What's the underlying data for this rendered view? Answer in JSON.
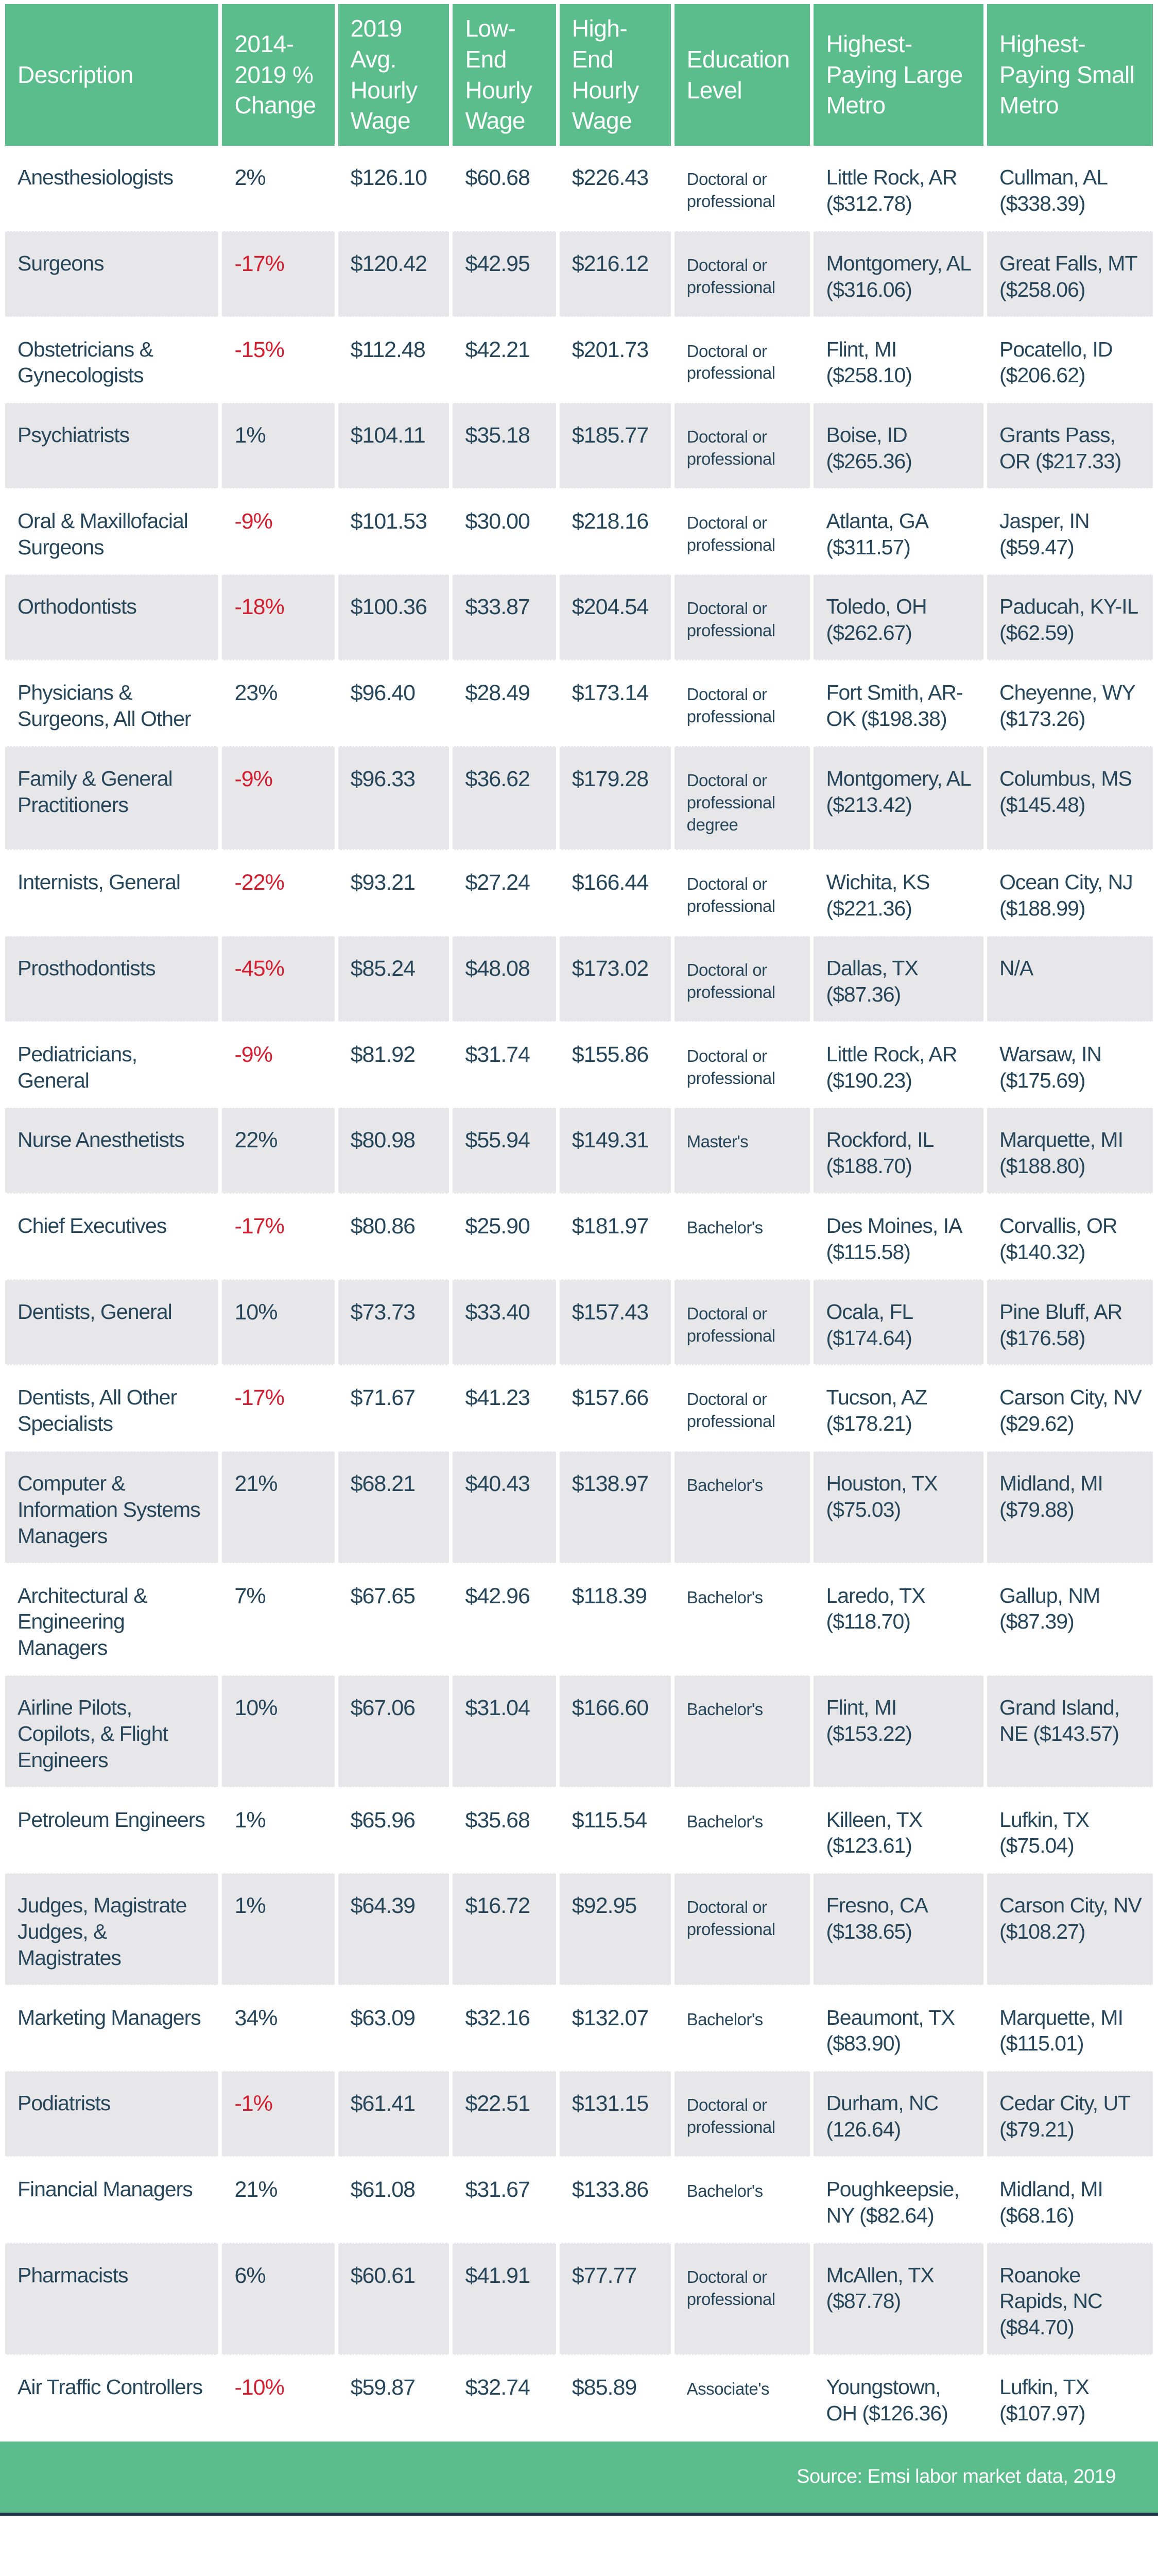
{
  "colors": {
    "header_green": "#5bbd8b",
    "row_gray": "#e7e7e9",
    "text_navy": "#27465a",
    "negative_red": "#d12031",
    "bottom_strip": "#20374a"
  },
  "footer": {
    "source": "Source: Emsi labor market data, 2019"
  },
  "table": {
    "columns": [
      {
        "id": "description",
        "label": "Description"
      },
      {
        "id": "change",
        "label": "2014-2019 % Change"
      },
      {
        "id": "avg_wage",
        "label": "2019 Avg. Hourly Wage"
      },
      {
        "id": "low_wage",
        "label": "Low-End Hourly Wage"
      },
      {
        "id": "high_wage",
        "label": "High-End Hourly Wage"
      },
      {
        "id": "education",
        "label": "Education Level"
      },
      {
        "id": "large_metro",
        "label": "Highest-Paying Large Metro"
      },
      {
        "id": "small_metro",
        "label": "Highest-Paying Small Metro"
      }
    ],
    "rows": [
      {
        "description": "Anesthesiologists",
        "change": "2%",
        "avg_wage": "$126.10",
        "low_wage": "$60.68",
        "high_wage": "$226.43",
        "education": "Doctoral or professional",
        "large_metro": "Little Rock, AR ($312.78)",
        "small_metro": "Cullman, AL ($338.39)"
      },
      {
        "description": "Surgeons",
        "change": "-17%",
        "avg_wage": "$120.42",
        "low_wage": "$42.95",
        "high_wage": "$216.12",
        "education": "Doctoral or professional",
        "large_metro": "Montgomery, AL ($316.06)",
        "small_metro": "Great Falls, MT ($258.06)"
      },
      {
        "description": "Obstetricians & Gynecologists",
        "change": "-15%",
        "avg_wage": "$112.48",
        "low_wage": "$42.21",
        "high_wage": "$201.73",
        "education": "Doctoral or professional",
        "large_metro": "Flint, MI ($258.10)",
        "small_metro": "Pocatello, ID ($206.62)"
      },
      {
        "description": "Psychiatrists",
        "change": "1%",
        "avg_wage": "$104.11",
        "low_wage": "$35.18",
        "high_wage": "$185.77",
        "education": "Doctoral or professional",
        "large_metro": "Boise, ID ($265.36)",
        "small_metro": "Grants Pass, OR ($217.33)"
      },
      {
        "description": "Oral & Maxillofacial Surgeons",
        "change": "-9%",
        "avg_wage": "$101.53",
        "low_wage": "$30.00",
        "high_wage": "$218.16",
        "education": "Doctoral or professional",
        "large_metro": "Atlanta, GA ($311.57)",
        "small_metro": "Jasper, IN ($59.47)"
      },
      {
        "description": "Orthodontists",
        "change": "-18%",
        "avg_wage": "$100.36",
        "low_wage": "$33.87",
        "high_wage": "$204.54",
        "education": "Doctoral or professional",
        "large_metro": "Toledo, OH ($262.67)",
        "small_metro": "Paducah, KY-IL ($62.59)"
      },
      {
        "description": "Physicians & Surgeons, All Other",
        "change": "23%",
        "avg_wage": "$96.40",
        "low_wage": "$28.49",
        "high_wage": "$173.14",
        "education": "Doctoral or professional",
        "large_metro": "Fort Smith, AR-OK ($198.38)",
        "small_metro": "Cheyenne, WY ($173.26)"
      },
      {
        "description": "Family & General Practitioners",
        "change": "-9%",
        "avg_wage": "$96.33",
        "low_wage": "$36.62",
        "high_wage": "$179.28",
        "education": "Doctoral or professional degree",
        "large_metro": "Montgomery, AL ($213.42)",
        "small_metro": "Columbus, MS ($145.48)"
      },
      {
        "description": "Internists, General",
        "change": "-22%",
        "avg_wage": "$93.21",
        "low_wage": "$27.24",
        "high_wage": "$166.44",
        "education": "Doctoral or professional",
        "large_metro": "Wichita, KS ($221.36)",
        "small_metro": "Ocean City, NJ ($188.99)"
      },
      {
        "description": "Prosthodontists",
        "change": "-45%",
        "avg_wage": "$85.24",
        "low_wage": "$48.08",
        "high_wage": "$173.02",
        "education": "Doctoral or professional",
        "large_metro": "Dallas, TX ($87.36)",
        "small_metro": "N/A"
      },
      {
        "description": "Pediatricians, General",
        "change": "-9%",
        "avg_wage": "$81.92",
        "low_wage": "$31.74",
        "high_wage": "$155.86",
        "education": "Doctoral or professional",
        "large_metro": "Little Rock, AR ($190.23)",
        "small_metro": "Warsaw, IN ($175.69)"
      },
      {
        "description": "Nurse Anesthetists",
        "change": "22%",
        "avg_wage": "$80.98",
        "low_wage": "$55.94",
        "high_wage": "$149.31",
        "education": "Master's",
        "large_metro": "Rockford, IL ($188.70)",
        "small_metro": "Marquette, MI ($188.80)"
      },
      {
        "description": "Chief Executives",
        "change": "-17%",
        "avg_wage": "$80.86",
        "low_wage": "$25.90",
        "high_wage": "$181.97",
        "education": "Bachelor's",
        "large_metro": "Des Moines, IA ($115.58)",
        "small_metro": "Corvallis, OR ($140.32)"
      },
      {
        "description": "Dentists, General",
        "change": "10%",
        "avg_wage": "$73.73",
        "low_wage": "$33.40",
        "high_wage": "$157.43",
        "education": "Doctoral or professional",
        "large_metro": "Ocala, FL ($174.64)",
        "small_metro": "Pine Bluff, AR ($176.58)"
      },
      {
        "description": "Dentists, All Other Specialists",
        "change": "-17%",
        "avg_wage": "$71.67",
        "low_wage": "$41.23",
        "high_wage": "$157.66",
        "education": "Doctoral or professional",
        "large_metro": "Tucson, AZ ($178.21)",
        "small_metro": "Carson City, NV ($29.62)"
      },
      {
        "description": "Computer & Information Systems Managers",
        "change": "21%",
        "avg_wage": "$68.21",
        "low_wage": "$40.43",
        "high_wage": "$138.97",
        "education": "Bachelor's",
        "large_metro": "Houston, TX ($75.03)",
        "small_metro": "Midland, MI ($79.88)"
      },
      {
        "description": "Architectural & Engineering Managers",
        "change": "7%",
        "avg_wage": "$67.65",
        "low_wage": "$42.96",
        "high_wage": "$118.39",
        "education": "Bachelor's",
        "large_metro": "Laredo, TX ($118.70)",
        "small_metro": "Gallup, NM ($87.39)"
      },
      {
        "description": "Airline Pilots, Copilots, & Flight Engineers",
        "change": "10%",
        "avg_wage": "$67.06",
        "low_wage": "$31.04",
        "high_wage": "$166.60",
        "education": "Bachelor's",
        "large_metro": "Flint, MI ($153.22)",
        "small_metro": "Grand Island, NE ($143.57)"
      },
      {
        "description": "Petroleum Engineers",
        "change": "1%",
        "avg_wage": "$65.96",
        "low_wage": "$35.68",
        "high_wage": "$115.54",
        "education": "Bachelor's",
        "large_metro": "Killeen, TX ($123.61)",
        "small_metro": "Lufkin, TX ($75.04)"
      },
      {
        "description": "Judges, Magistrate Judges, & Magistrates",
        "change": "1%",
        "avg_wage": "$64.39",
        "low_wage": "$16.72",
        "high_wage": "$92.95",
        "education": "Doctoral or professional",
        "large_metro": "Fresno, CA ($138.65)",
        "small_metro": "Carson City, NV ($108.27)"
      },
      {
        "description": "Marketing Managers",
        "change": "34%",
        "avg_wage": "$63.09",
        "low_wage": "$32.16",
        "high_wage": "$132.07",
        "education": "Bachelor's",
        "large_metro": "Beaumont, TX ($83.90)",
        "small_metro": "Marquette, MI ($115.01)"
      },
      {
        "description": "Podiatrists",
        "change": "-1%",
        "avg_wage": "$61.41",
        "low_wage": "$22.51",
        "high_wage": "$131.15",
        "education": "Doctoral or professional",
        "large_metro": "Durham, NC (126.64)",
        "small_metro": "Cedar City, UT ($79.21)"
      },
      {
        "description": "Financial Managers",
        "change": "21%",
        "avg_wage": "$61.08",
        "low_wage": "$31.67",
        "high_wage": "$133.86",
        "education": "Bachelor's",
        "large_metro": "Poughkeepsie, NY ($82.64)",
        "small_metro": "Midland, MI ($68.16)"
      },
      {
        "description": "Pharmacists",
        "change": "6%",
        "avg_wage": "$60.61",
        "low_wage": "$41.91",
        "high_wage": "$77.77",
        "education": "Doctoral or professional",
        "large_metro": "McAllen, TX ($87.78)",
        "small_metro": "Roanoke Rapids, NC ($84.70)"
      },
      {
        "description": "Air Traffic Controllers",
        "change": "-10%",
        "avg_wage": "$59.87",
        "low_wage": "$32.74",
        "high_wage": "$85.89",
        "education": "Associate's",
        "large_metro": "Youngstown, OH ($126.36)",
        "small_metro": "Lufkin, TX ($107.97)"
      }
    ]
  }
}
